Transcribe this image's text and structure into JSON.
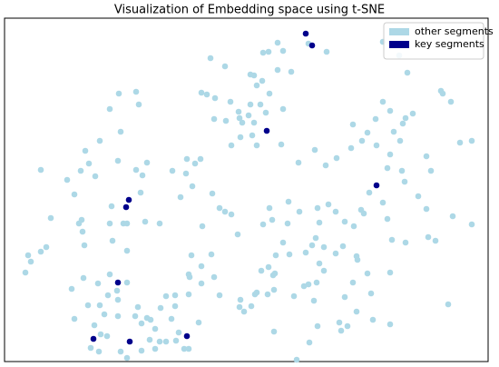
{
  "chart_data": {
    "type": "scatter",
    "title": "Visualization of Embedding space using t-SNE",
    "xlim": [
      5,
      538
    ],
    "ylim": [
      398,
      20
    ],
    "legend": "upper right",
    "series": [
      {
        "name": "other segments",
        "color": "#add8e6",
        "x": [
          422,
          440,
          449,
          360,
          340,
          296,
          312,
          290,
          306,
          232,
          248,
          276,
          280,
          289,
          306,
          321,
          283,
          297,
          222,
          228,
          237,
          254,
          263,
          276,
          287,
          274,
          293,
          280,
          267,
          249,
          236,
          264,
          312,
          278,
          265,
          255,
          283,
          310,
          329,
          347,
          359,
          371,
          387,
          399,
          389,
          405,
          414,
          415,
          422,
          430,
          444,
          434,
          441,
          447,
          455,
          486,
          488,
          497,
          470,
          507,
          520,
          475,
          430,
          427,
          443,
          446,
          461,
          470,
          499,
          520,
          472,
          480,
          494,
          447,
          430,
          432,
          427,
          422,
          407,
          398,
          401,
          390,
          380,
          362,
          352,
          348,
          344,
          357,
          330,
          350,
          370,
          378,
          393,
          394,
          409,
          405,
          370,
          352,
          337,
          335,
          346,
          349,
          374,
          376,
          383,
          393,
          411,
          430,
          350,
          341,
          327,
          205,
          206,
          215,
          221,
          212,
          190,
          150,
          157,
          130,
          105,
          98,
          89,
          82,
          87,
          91,
          93,
          90,
          123,
          121,
          136,
          140,
          160,
          176,
          155,
          162,
          133,
          153,
          131,
          150,
          121,
          110,
          94,
          74,
          45,
          56,
          51,
          45,
          31,
          34,
          28,
          124,
          140,
          121,
          129,
          130,
          108,
          119,
          92,
          79,
          82,
          97,
          110,
          130,
          149,
          140,
          152,
          156,
          162,
          171,
          176,
          183,
          193,
          209,
          222,
          236,
          222,
          211,
          208,
          193,
          166,
          208,
          189,
          177,
          183,
          156,
          165,
          171,
          197,
          194,
          133,
          118,
          109,
          104,
          115,
          140,
          100,
          111,
          203,
          242,
          265,
          269,
          277,
          283,
          303,
          302,
          295,
          302,
          324,
          301,
          288,
          312,
          319,
          304,
          296,
          281,
          264,
          234,
          223,
          199,
          248,
          242,
          255,
          262,
          300,
          290,
          297,
          317,
          233,
          318,
          340,
          357,
          380,
          389,
          219,
          208
        ],
        "values": [
          46,
          61,
          80,
          57,
          48,
          57,
          56,
          58,
          47,
          64,
          73,
          82,
          83,
          89,
          77,
          79,
          94,
          103,
          102,
          104,
          108,
          112,
          123,
          115,
          115,
          127,
          124,
          135,
          135,
          133,
          131,
          130,
          120,
          149,
          151,
          160,
          160,
          159,
          179,
          165,
          182,
          174,
          163,
          155,
          137,
          146,
          131,
          160,
          112,
          122,
          136,
          145,
          155,
          130,
          125,
          100,
          103,
          112,
          172,
          157,
          155,
          188,
          170,
          185,
          188,
          200,
          216,
          230,
          238,
          247,
          261,
          265,
          335,
          267,
          300,
          264,
          241,
          223,
          212,
          231,
          235,
          249,
          244,
          225,
          245,
          262,
          270,
          272,
          233,
          229,
          233,
          271,
          282,
          286,
          323,
          301,
          279,
          290,
          278,
          315,
          331,
          311,
          355,
          364,
          359,
          343,
          352,
          357,
          359,
          377,
          396,
          191,
          175,
          180,
          175,
          205,
          188,
          187,
          193,
          177,
          194,
          180,
          188,
          214,
          246,
          255,
          270,
          242,
          227,
          246,
          246,
          246,
          244,
          246,
          212,
          179,
          145,
          115,
          103,
          101,
          120,
          155,
          166,
          198,
          187,
          240,
          272,
          277,
          281,
          288,
          300,
          265,
          276,
          302,
          320,
          330,
          312,
          325,
          306,
          318,
          351,
          336,
          336,
          348,
          348,
          311,
          338,
          356,
          350,
          362,
          376,
          326,
          337,
          305,
          312,
          305,
          293,
          281,
          302,
          325,
          352,
          324,
          351,
          339,
          376,
          386,
          374,
          384,
          366,
          375,
          387,
          370,
          387,
          358,
          346,
          394,
          383,
          368,
          384,
          325,
          330,
          343,
          337,
          322,
          301,
          319,
          324,
          365,
          326,
          303,
          298,
          267,
          280,
          281,
          294,
          324,
          338,
          213,
          249,
          217,
          233,
          229,
          236,
          258,
          242,
          247,
          229,
          246,
          280,
          222,
          313,
          298,
          327,
          311,
          355,
          384
        ]
      },
      {
        "name": "key segments",
        "color": "#00008b",
        "x": [
          337,
          344,
          294,
          142,
          139,
          130,
          415,
          103,
          143,
          206
        ],
        "values": [
          37,
          50,
          144,
          220,
          228,
          311,
          204,
          373,
          376,
          370
        ]
      }
    ]
  }
}
